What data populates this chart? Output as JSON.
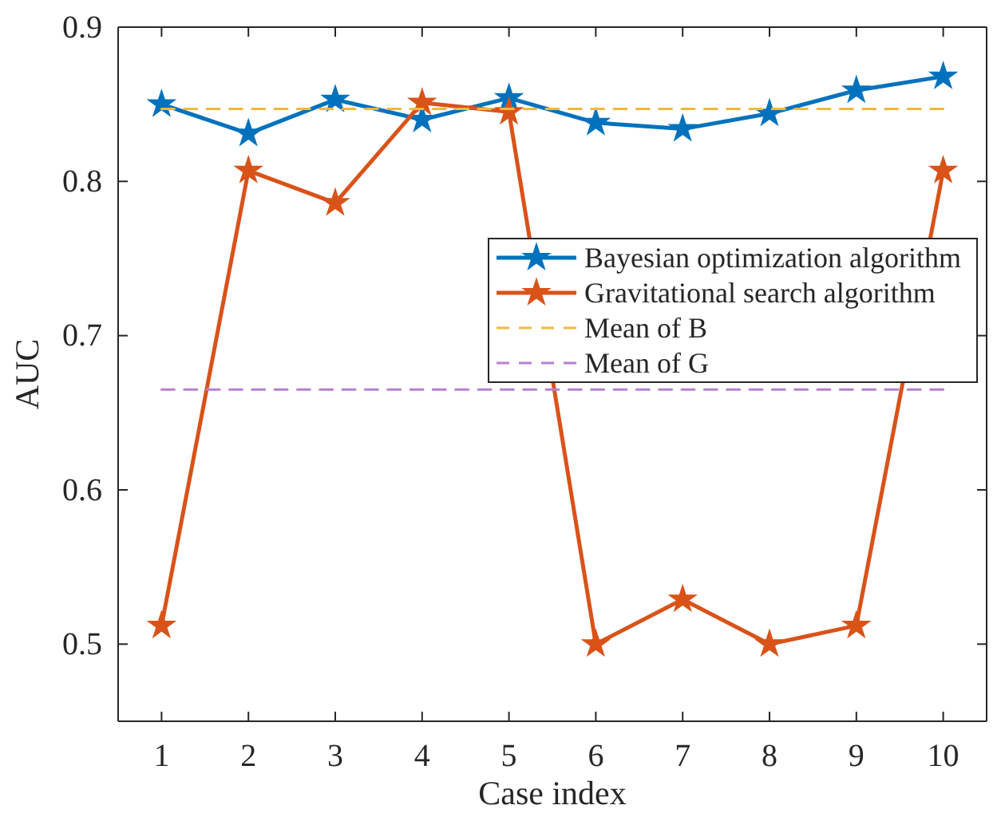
{
  "chart_data": {
    "type": "line",
    "xlabel": "Case index",
    "ylabel": "AUC",
    "x": [
      1,
      2,
      3,
      4,
      5,
      6,
      7,
      8,
      9,
      10
    ],
    "xlim": [
      0.5,
      10.5
    ],
    "xticks": [
      1,
      2,
      3,
      4,
      5,
      6,
      7,
      8,
      9,
      10
    ],
    "ylim": [
      0.45,
      0.9
    ],
    "yticks": [
      0.5,
      0.6,
      0.7,
      0.8,
      0.9
    ],
    "grid": false,
    "legend": "right",
    "series": [
      {
        "name": "Bayesian optimization algorithm",
        "color": "#0072bd",
        "marker": "star",
        "line_style": "solid",
        "values": [
          0.85,
          0.831,
          0.853,
          0.84,
          0.854,
          0.838,
          0.834,
          0.844,
          0.859,
          0.868
        ]
      },
      {
        "name": "Gravitational search algorithm",
        "color": "#d95319",
        "marker": "star",
        "line_style": "solid",
        "values": [
          0.512,
          0.807,
          0.786,
          0.851,
          0.845,
          0.5,
          0.529,
          0.5,
          0.512,
          0.807
        ]
      },
      {
        "name": "Mean of B",
        "color": "#f0b840",
        "marker": "none",
        "line_style": "dashed",
        "values": [
          0.847,
          0.847,
          0.847,
          0.847,
          0.847,
          0.847,
          0.847,
          0.847,
          0.847,
          0.847
        ]
      },
      {
        "name": "Mean of G",
        "color": "#b77fd0",
        "marker": "none",
        "line_style": "dashed",
        "values": [
          0.665,
          0.665,
          0.665,
          0.665,
          0.665,
          0.665,
          0.665,
          0.665,
          0.665,
          0.665
        ]
      }
    ]
  }
}
